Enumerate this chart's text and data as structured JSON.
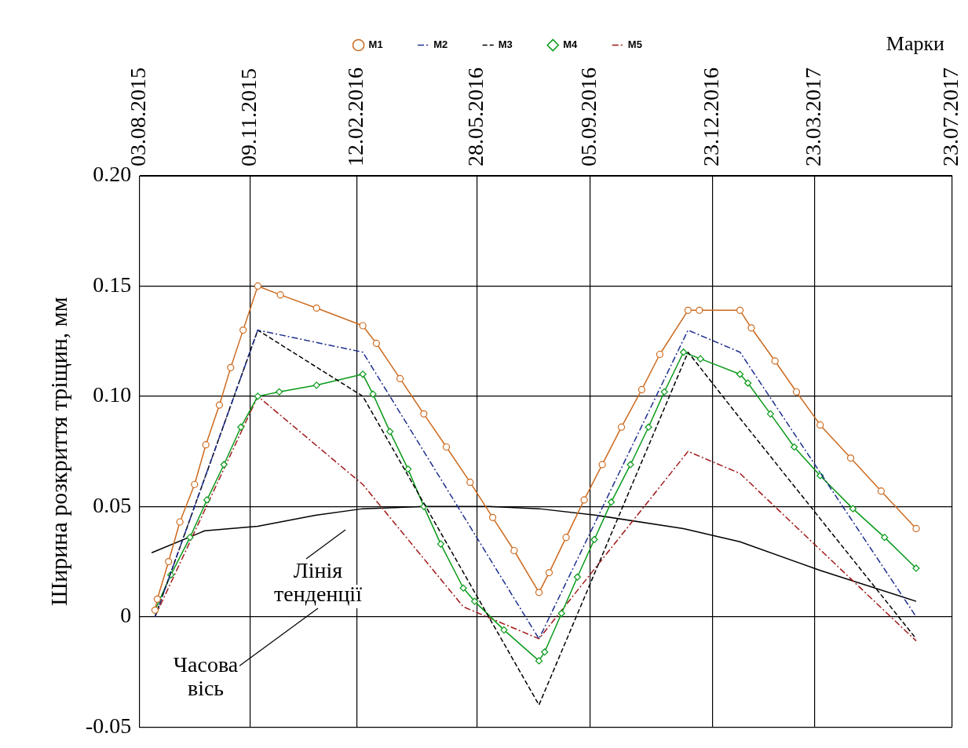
{
  "chart_data": {
    "type": "line",
    "ylabel": "Ширина розкриття тріщин, мм",
    "legend_title": "Марки",
    "legend": "top",
    "grid": true,
    "xlim": [
      "2015-08-03",
      "2017-07-23"
    ],
    "xticks": [
      {
        "value": "2015-08-03",
        "label": "03.08.2015"
      },
      {
        "value": "2015-11-09",
        "label": "09.11.2015"
      },
      {
        "value": "2016-02-12",
        "label": "12.02.2016"
      },
      {
        "value": "2016-05-28",
        "label": "28.05.2016"
      },
      {
        "value": "2016-09-05",
        "label": "05.09.2016"
      },
      {
        "value": "2016-12-23",
        "label": "23.12.2016"
      },
      {
        "value": "2017-03-23",
        "label": "23.03.2017"
      },
      {
        "value": "2017-07-23",
        "label": "23.07.2017"
      }
    ],
    "ylim": [
      -0.05,
      0.2
    ],
    "yticks": [
      -0.05,
      0,
      0.05,
      {
        "value": 0.1,
        "label": "0.10"
      },
      0.15,
      {
        "value": 0.2,
        "label": "0.20"
      }
    ],
    "series": [
      {
        "name": "M1",
        "color": "#cc6a1e",
        "marker": "circle",
        "line_style": "solid",
        "x": [
          "2015-08-17",
          "2015-08-19",
          "2015-08-29",
          "2015-09-08",
          "2015-09-21",
          "2015-10-01",
          "2015-10-13",
          "2015-10-23",
          "2015-11-03",
          "2015-11-16",
          "2015-12-06",
          "2016-01-07",
          "2016-02-17",
          "2016-02-29",
          "2016-03-21",
          "2016-04-11",
          "2016-05-01",
          "2016-05-22",
          "2016-06-11",
          "2016-06-30",
          "2016-07-22",
          "2016-07-31",
          "2016-08-15",
          "2016-08-31",
          "2016-09-16",
          "2016-10-03",
          "2016-10-21",
          "2016-11-06",
          "2016-12-01",
          "2016-12-11",
          "2017-01-16",
          "2017-01-26",
          "2017-02-16",
          "2017-03-07",
          "2017-03-28",
          "2017-04-24",
          "2017-05-21",
          "2017-06-21"
        ],
        "values": [
          0.003,
          0.008,
          0.025,
          0.043,
          0.06,
          0.078,
          0.096,
          0.113,
          0.13,
          0.15,
          0.146,
          0.14,
          0.132,
          0.124,
          0.108,
          0.092,
          0.077,
          0.061,
          0.045,
          0.03,
          0.011,
          0.02,
          0.036,
          0.053,
          0.069,
          0.086,
          0.103,
          0.119,
          0.139,
          0.139,
          0.139,
          0.131,
          0.116,
          0.102,
          0.087,
          0.072,
          0.057,
          0.04
        ]
      },
      {
        "name": "M2",
        "color": "#1f2f8f",
        "marker": "none",
        "line_style": "dashdot",
        "x": [
          "2015-08-17",
          "2015-11-16",
          "2016-02-17",
          "2016-07-22",
          "2016-12-01",
          "2017-01-16",
          "2017-06-21"
        ],
        "values": [
          0,
          0.13,
          0.12,
          -0.01,
          0.13,
          0.12,
          0
        ]
      },
      {
        "name": "M3",
        "color": "#000000",
        "marker": "none",
        "line_style": "dashed",
        "x": [
          "2015-08-17",
          "2015-11-16",
          "2016-02-17",
          "2016-07-22",
          "2016-12-01",
          "2017-01-16",
          "2017-06-21"
        ],
        "values": [
          0,
          0.13,
          0.1,
          -0.04,
          0.12,
          0.09,
          -0.01
        ]
      },
      {
        "name": "M4",
        "color": "#0a9a1a",
        "marker": "diamond",
        "line_style": "solid",
        "x": [
          "2015-08-17",
          "2015-08-31",
          "2015-09-17",
          "2015-10-02",
          "2015-10-17",
          "2015-11-01",
          "2015-11-16",
          "2015-12-05",
          "2016-01-07",
          "2016-02-17",
          "2016-02-26",
          "2016-03-12",
          "2016-03-28",
          "2016-04-11",
          "2016-04-26",
          "2016-05-16",
          "2016-05-26",
          "2016-06-21",
          "2016-07-22",
          "2016-07-27",
          "2016-08-11",
          "2016-08-25",
          "2016-09-09",
          "2016-09-24",
          "2016-10-11",
          "2016-10-27",
          "2016-11-10",
          "2016-11-27",
          "2016-12-12",
          "2017-01-16",
          "2017-01-23",
          "2017-02-12",
          "2017-03-05",
          "2017-03-28",
          "2017-04-26",
          "2017-05-24",
          "2017-06-21"
        ],
        "values": [
          0.003,
          0.019,
          0.036,
          0.053,
          0.069,
          0.086,
          0.1,
          0.102,
          0.105,
          0.11,
          0.101,
          0.084,
          0.067,
          0.05,
          0.033,
          0.013,
          0.007,
          -0.006,
          -0.02,
          -0.016,
          0.0015,
          0.018,
          0.035,
          0.052,
          0.069,
          0.086,
          0.102,
          0.12,
          0.117,
          0.11,
          0.106,
          0.092,
          0.077,
          0.064,
          0.049,
          0.036,
          0.022
        ]
      },
      {
        "name": "M5",
        "color": "#a01818",
        "marker": "none",
        "line_style": "dashdot",
        "x": [
          "2015-08-17",
          "2015-11-16",
          "2016-02-17",
          "2016-05-16",
          "2016-07-22",
          "2016-12-01",
          "2017-01-16",
          "2017-06-21"
        ],
        "values": [
          0,
          0.1,
          0.06,
          0.0045,
          -0.01,
          0.075,
          0.065,
          -0.011
        ]
      },
      {
        "color": "#000000",
        "marker": "none",
        "line_style": "solid",
        "x": [
          "2015-08-14",
          "2015-09-30",
          "2015-11-16",
          "2016-01-06",
          "2016-02-17",
          "2016-04-11",
          "2016-06-08",
          "2016-07-22",
          "2016-09-11",
          "2016-11-27",
          "2017-01-16",
          "2017-03-28",
          "2017-06-21"
        ],
        "values": [
          0.029,
          0.039,
          0.041,
          0.046,
          0.049,
          0.05,
          0.05,
          0.049,
          0.046,
          0.04,
          0.034,
          0.021,
          0.007
        ]
      }
    ],
    "annotations": [
      "Лінія тенденції",
      "Часова вісь"
    ]
  }
}
